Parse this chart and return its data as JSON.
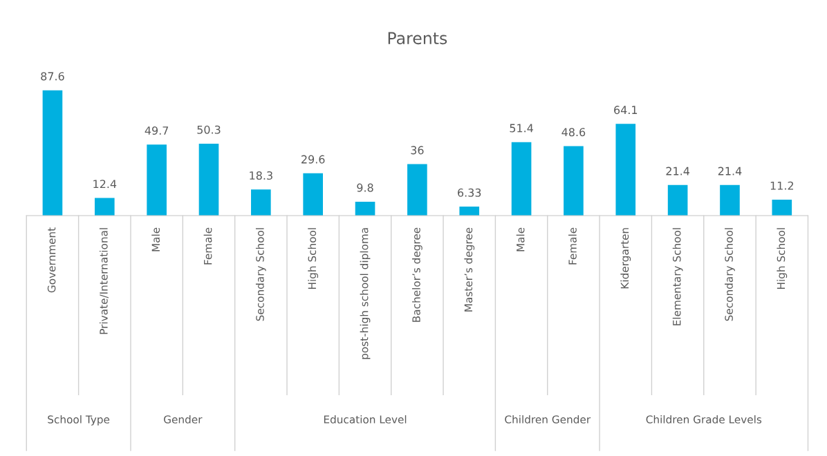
{
  "chart_data": {
    "type": "bar",
    "title": "Parents",
    "categories": [
      "Government",
      "Private/International",
      "Male",
      "Female",
      "Secondary School",
      "High School",
      "post-high school diploma",
      "Bachelor’s degree",
      "Master’s degree",
      "Male",
      "Female",
      "Kidergarten",
      "Elementary School",
      "Secondary School",
      "High School"
    ],
    "series": [
      {
        "color": "#00b0e0",
        "values": [
          87.6,
          12.4,
          null,
          null,
          null,
          null,
          null,
          null,
          null,
          null,
          null,
          null,
          null,
          null,
          null
        ]
      },
      {
        "color": "#00b0e0",
        "values": [
          null,
          null,
          49.7,
          50.3,
          null,
          null,
          null,
          null,
          null,
          null,
          null,
          null,
          null,
          null,
          null
        ]
      },
      {
        "color": "#00b0e0",
        "values": [
          null,
          null,
          null,
          null,
          18.3,
          29.6,
          9.8,
          36,
          6.33,
          null,
          null,
          null,
          null,
          null,
          null
        ]
      },
      {
        "color": "#00b0e0",
        "values": [
          null,
          null,
          null,
          null,
          null,
          null,
          null,
          null,
          null,
          51.4,
          48.6,
          null,
          null,
          null,
          null
        ]
      },
      {
        "color": "#00b0e0",
        "values": [
          null,
          null,
          null,
          null,
          null,
          null,
          null,
          null,
          null,
          null,
          null,
          64.1,
          21.4,
          21.4,
          11.2
        ]
      }
    ],
    "data_labels": true,
    "tick_labels": "x",
    "grid": false,
    "legend": false,
    "annotations": [
      "School Type",
      "Gender",
      "Education Level",
      "Children Gender",
      "Children Grade Levels"
    ]
  }
}
